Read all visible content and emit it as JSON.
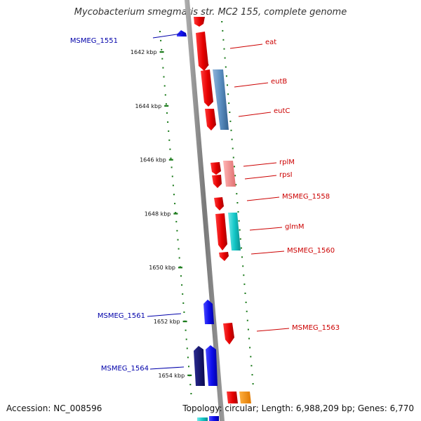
{
  "title": "Mycobacterium smegmatis str. MC2 155, complete genome",
  "footer": {
    "accession": "Accession: NC_008596",
    "summary": "Topology: circular; Length: 6,988,209 bp; Genes: 6,770"
  },
  "colors": {
    "axis": "#8a8a8a",
    "dots": "#1a7a1a",
    "forward_label": "#cc0000",
    "reverse_label": "#0000aa"
  },
  "ticks": [
    {
      "label": "1642 kbp",
      "kbp": 1642
    },
    {
      "label": "1644 kbp",
      "kbp": 1644
    },
    {
      "label": "1646 kbp",
      "kbp": 1646
    },
    {
      "label": "1648 kbp",
      "kbp": 1648
    },
    {
      "label": "1650 kbp",
      "kbp": 1650
    },
    {
      "label": "1652 kbp",
      "kbp": 1652
    },
    {
      "label": "1654 kbp",
      "kbp": 1654
    }
  ],
  "labels": [
    {
      "text": "MSMEG_1551",
      "side": "left"
    },
    {
      "text": "eat",
      "side": "right"
    },
    {
      "text": "eutB",
      "side": "right"
    },
    {
      "text": "eutC",
      "side": "right"
    },
    {
      "text": "rplM",
      "side": "right"
    },
    {
      "text": "rpsI",
      "side": "right"
    },
    {
      "text": "MSMEG_1558",
      "side": "right"
    },
    {
      "text": "glmM",
      "side": "right"
    },
    {
      "text": "MSMEG_1560",
      "side": "right"
    },
    {
      "text": "MSMEG_1561",
      "side": "left"
    },
    {
      "text": "MSMEG_1563",
      "side": "right"
    },
    {
      "text": "MSMEG_1564",
      "side": "left"
    }
  ]
}
